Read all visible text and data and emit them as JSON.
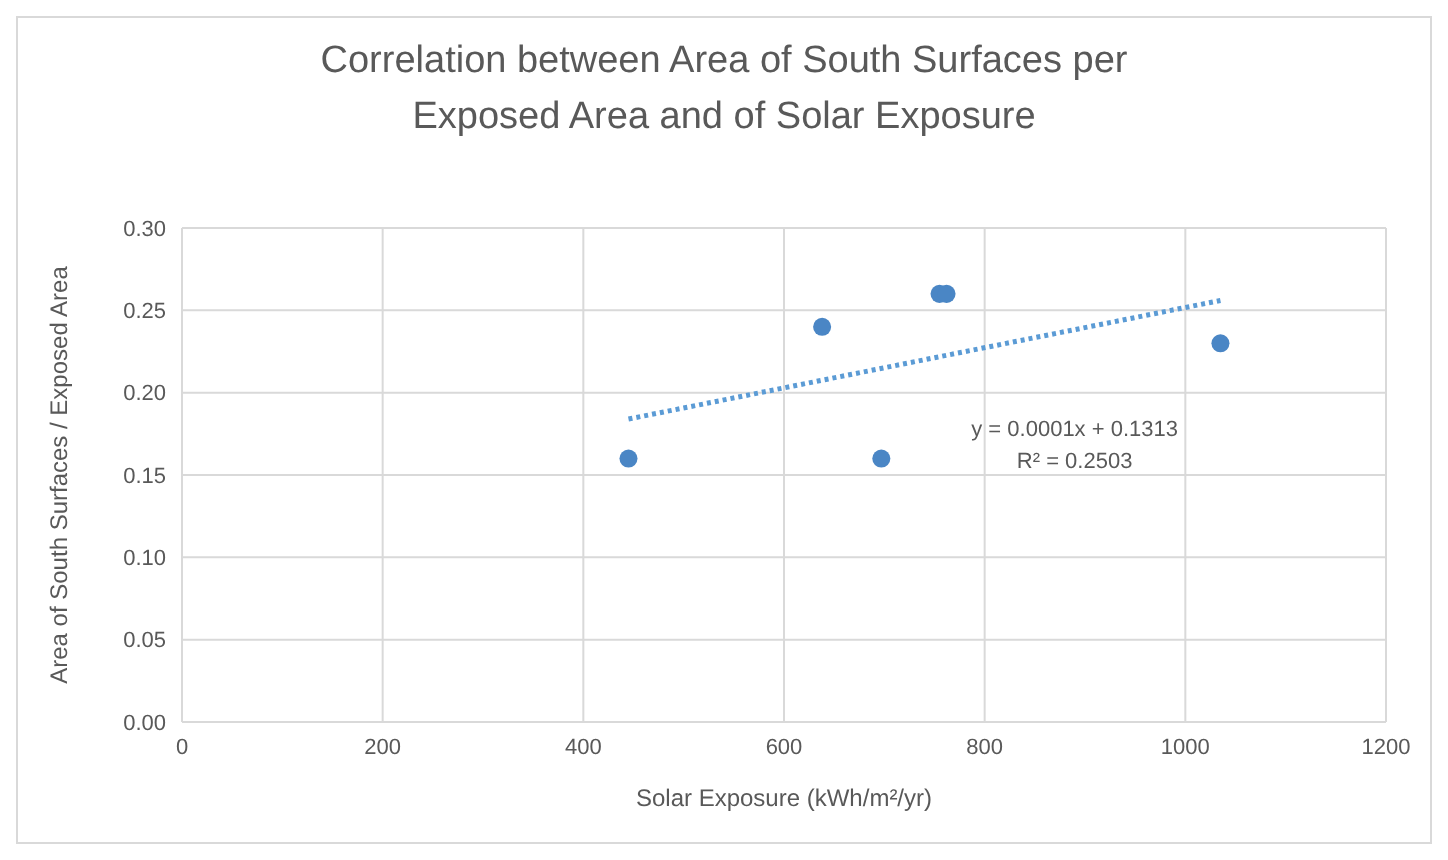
{
  "chart_data": {
    "type": "scatter",
    "title": "Correlation between Area of South Surfaces per Exposed Area and of Solar Exposure",
    "xlabel": "Solar Exposure (kWh/m²/yr)",
    "ylabel": "Area of South Surfaces / Exposed Area",
    "series": [
      {
        "color": "#4a86c5",
        "x": [
          445,
          638,
          697,
          755,
          762,
          1035
        ],
        "values": [
          0.16,
          0.24,
          0.16,
          0.26,
          0.26,
          0.23
        ],
        "marker": "circle"
      },
      {
        "type": "line",
        "color": "#5b9bd5",
        "x": [
          445,
          1035
        ],
        "values": [
          0.184,
          0.256
        ],
        "line_style": "dotted",
        "marker": "none"
      }
    ],
    "annotations": [
      "y = 0.0001x + 0.1313",
      "R² = 0.2503"
    ],
    "xlim": [
      0,
      1200
    ],
    "xticks": [
      0,
      200,
      400,
      600,
      800,
      1000,
      1200
    ],
    "ylim": [
      0,
      0.3
    ],
    "yticks": [
      {
        "value": 0,
        "label": "0.00"
      },
      {
        "value": 0.05,
        "label": "0.05"
      },
      {
        "value": 0.1,
        "label": "0.10"
      },
      {
        "value": 0.15,
        "label": "0.15"
      },
      {
        "value": 0.2,
        "label": "0.20"
      },
      {
        "value": 0.25,
        "label": "0.25"
      },
      {
        "value": 0.3,
        "label": "0.30"
      }
    ],
    "grid": true,
    "legend": false
  }
}
